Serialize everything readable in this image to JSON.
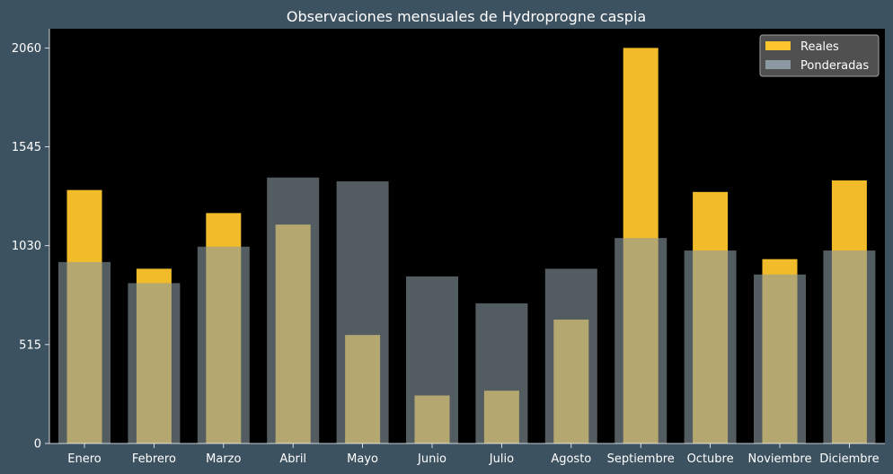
{
  "chart_data": {
    "type": "bar",
    "title": "Observaciones mensuales de Hydroprogne caspia",
    "xlabel": "",
    "ylabel": "",
    "categories": [
      "Enero",
      "Febrero",
      "Marzo",
      "Abril",
      "Mayo",
      "Junio",
      "Julio",
      "Agosto",
      "Septiembre",
      "Octubre",
      "Noviembre",
      "Diciembre"
    ],
    "series": [
      {
        "name": "Reales",
        "color": "#ffc52c",
        "values": [
          1320,
          910,
          1200,
          1140,
          565,
          250,
          275,
          645,
          2060,
          1310,
          960,
          1370
        ]
      },
      {
        "name": "Ponderadas",
        "color": "#8a9aa0",
        "values": [
          945,
          835,
          1025,
          1385,
          1365,
          870,
          730,
          910,
          1070,
          1005,
          880,
          1005
        ]
      }
    ],
    "yticks": [
      0,
      515,
      1030,
      1545,
      2060
    ],
    "ylim": [
      0,
      2160
    ],
    "grid": false,
    "legend_position": "top-right",
    "colors": {
      "figure_background": "#3d5260",
      "plot_background": "#000000",
      "text": "#ffffff"
    }
  }
}
